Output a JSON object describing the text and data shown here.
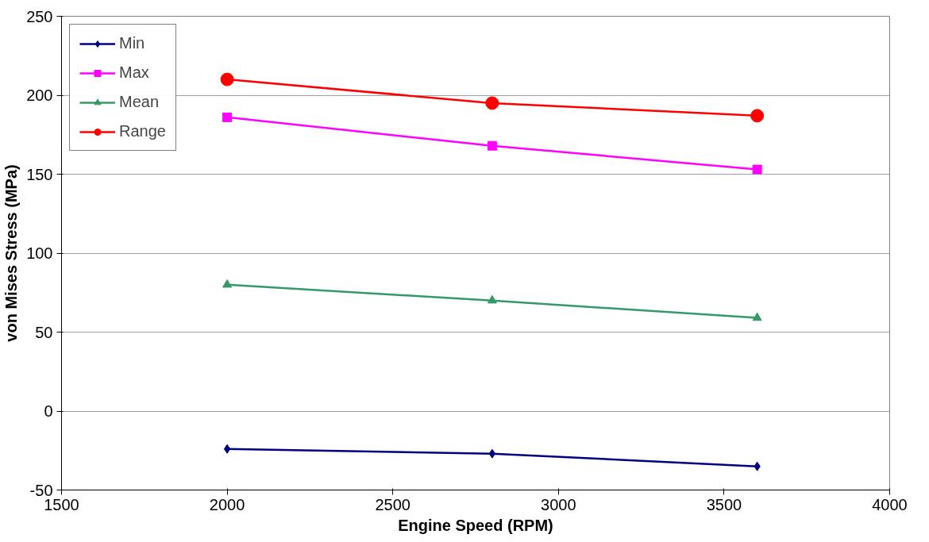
{
  "chart_data": {
    "type": "line",
    "xlabel": "Engine Speed (RPM)",
    "ylabel": "von Mises Stress (MPa)",
    "x": [
      2000,
      2800,
      3600
    ],
    "series": [
      {
        "name": "Min",
        "color": "#000080",
        "marker": "diamond",
        "values": [
          -24,
          -27,
          -35
        ]
      },
      {
        "name": "Max",
        "color": "#ff00ff",
        "marker": "square",
        "values": [
          186,
          168,
          153
        ]
      },
      {
        "name": "Mean",
        "color": "#339966",
        "marker": "triangle",
        "values": [
          80,
          70,
          59
        ]
      },
      {
        "name": "Range",
        "color": "#ff0000",
        "marker": "circle",
        "values": [
          210,
          195,
          187
        ]
      }
    ],
    "xlim": [
      1500,
      4000
    ],
    "xticks": [
      1500,
      2000,
      2500,
      3000,
      3500,
      4000
    ],
    "ylim": [
      -50,
      250
    ],
    "yticks": [
      -50,
      0,
      50,
      100,
      150,
      200,
      250
    ],
    "grid": "y",
    "legend": "top left",
    "line_style": "solid"
  }
}
